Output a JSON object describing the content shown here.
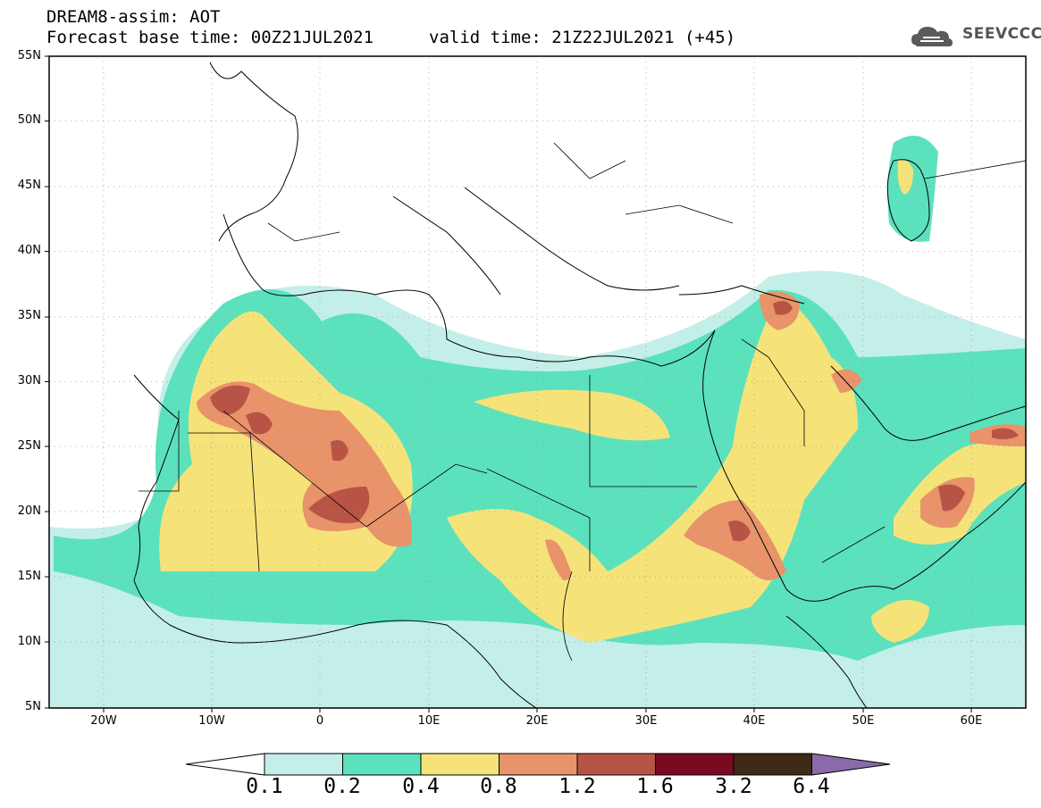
{
  "header": {
    "title_line1": "DREAM8-assim: AOT",
    "title_line2": "Forecast base time: 00Z21JUL2021",
    "valid_time": "valid time: 21Z22JUL2021 (+45)",
    "logo_text": "SEEVCCC",
    "logo_icon": "cloud-logo-icon"
  },
  "map": {
    "lat_labels": [
      "55N",
      "50N",
      "45N",
      "40N",
      "35N",
      "30N",
      "25N",
      "20N",
      "15N",
      "10N",
      "5N"
    ],
    "lon_labels": [
      "20W",
      "10W",
      "0",
      "10E",
      "20E",
      "30E",
      "40E",
      "50E",
      "60E"
    ],
    "lat_range": [
      5,
      55
    ],
    "lon_range": [
      -25,
      65
    ]
  },
  "colorbar": {
    "levels": [
      "0.1",
      "0.2",
      "0.4",
      "0.8",
      "1.2",
      "1.6",
      "3.2",
      "6.4"
    ],
    "colors": [
      "#c4eee8",
      "#5ce1bd",
      "#f5e37a",
      "#e8936a",
      "#b85446",
      "#7a0a22",
      "#3e2a17",
      "#8a6aa8"
    ],
    "under_color": "#ffffff"
  }
}
